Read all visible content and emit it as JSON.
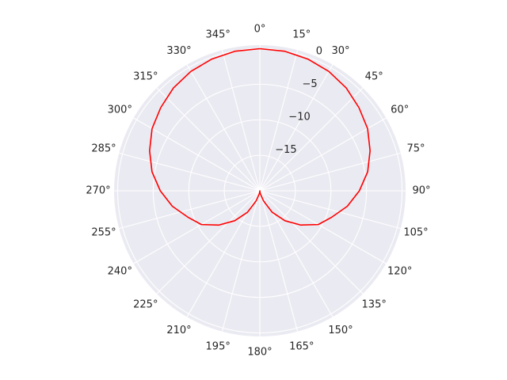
{
  "chart_data": {
    "type": "polar-line",
    "title": "",
    "theta_zero_location": "N",
    "theta_direction": "clockwise",
    "angle_ticks": [
      "0°",
      "15°",
      "30°",
      "45°",
      "60°",
      "75°",
      "90°",
      "105°",
      "120°",
      "135°",
      "150°",
      "165°",
      "180°",
      "195°",
      "210°",
      "225°",
      "240°",
      "255°",
      "270°",
      "285°",
      "300°",
      "315°",
      "330°",
      "345°"
    ],
    "angle_tick_degrees": [
      0,
      15,
      30,
      45,
      60,
      75,
      90,
      105,
      120,
      135,
      150,
      165,
      180,
      195,
      210,
      225,
      240,
      255,
      270,
      285,
      300,
      315,
      330,
      345
    ],
    "r_ticks": [
      -15,
      -10,
      -5,
      0
    ],
    "r_tick_labels": [
      "−15",
      "−10",
      "−5",
      "0"
    ],
    "rlim": [
      -20,
      0.5
    ],
    "grid": true,
    "series": [
      {
        "color": "#ff0000",
        "theta_deg": [
          0,
          10,
          20,
          30,
          40,
          50,
          60,
          70,
          80,
          90,
          100,
          110,
          120,
          130,
          140,
          150,
          160,
          170,
          175,
          179,
          180,
          181,
          185,
          190,
          200,
          210,
          220,
          230,
          240,
          250,
          260,
          270,
          280,
          290,
          300,
          310,
          320,
          330,
          340,
          350,
          360
        ],
        "r_db": [
          0.0,
          -0.05,
          -0.27,
          -0.6,
          -1.1,
          -1.8,
          -2.5,
          -3.5,
          -4.6,
          -6.0,
          -7.5,
          -9.2,
          -10.5,
          -12.5,
          -14.5,
          -16.5,
          -18.5,
          -19.6,
          -19.9,
          -20.0,
          -20.0,
          -20.0,
          -19.9,
          -19.6,
          -18.5,
          -16.5,
          -14.5,
          -12.5,
          -10.5,
          -9.2,
          -7.5,
          -6.0,
          -4.6,
          -3.5,
          -2.5,
          -1.8,
          -1.1,
          -0.6,
          -0.27,
          -0.05,
          0.0
        ]
      }
    ]
  }
}
